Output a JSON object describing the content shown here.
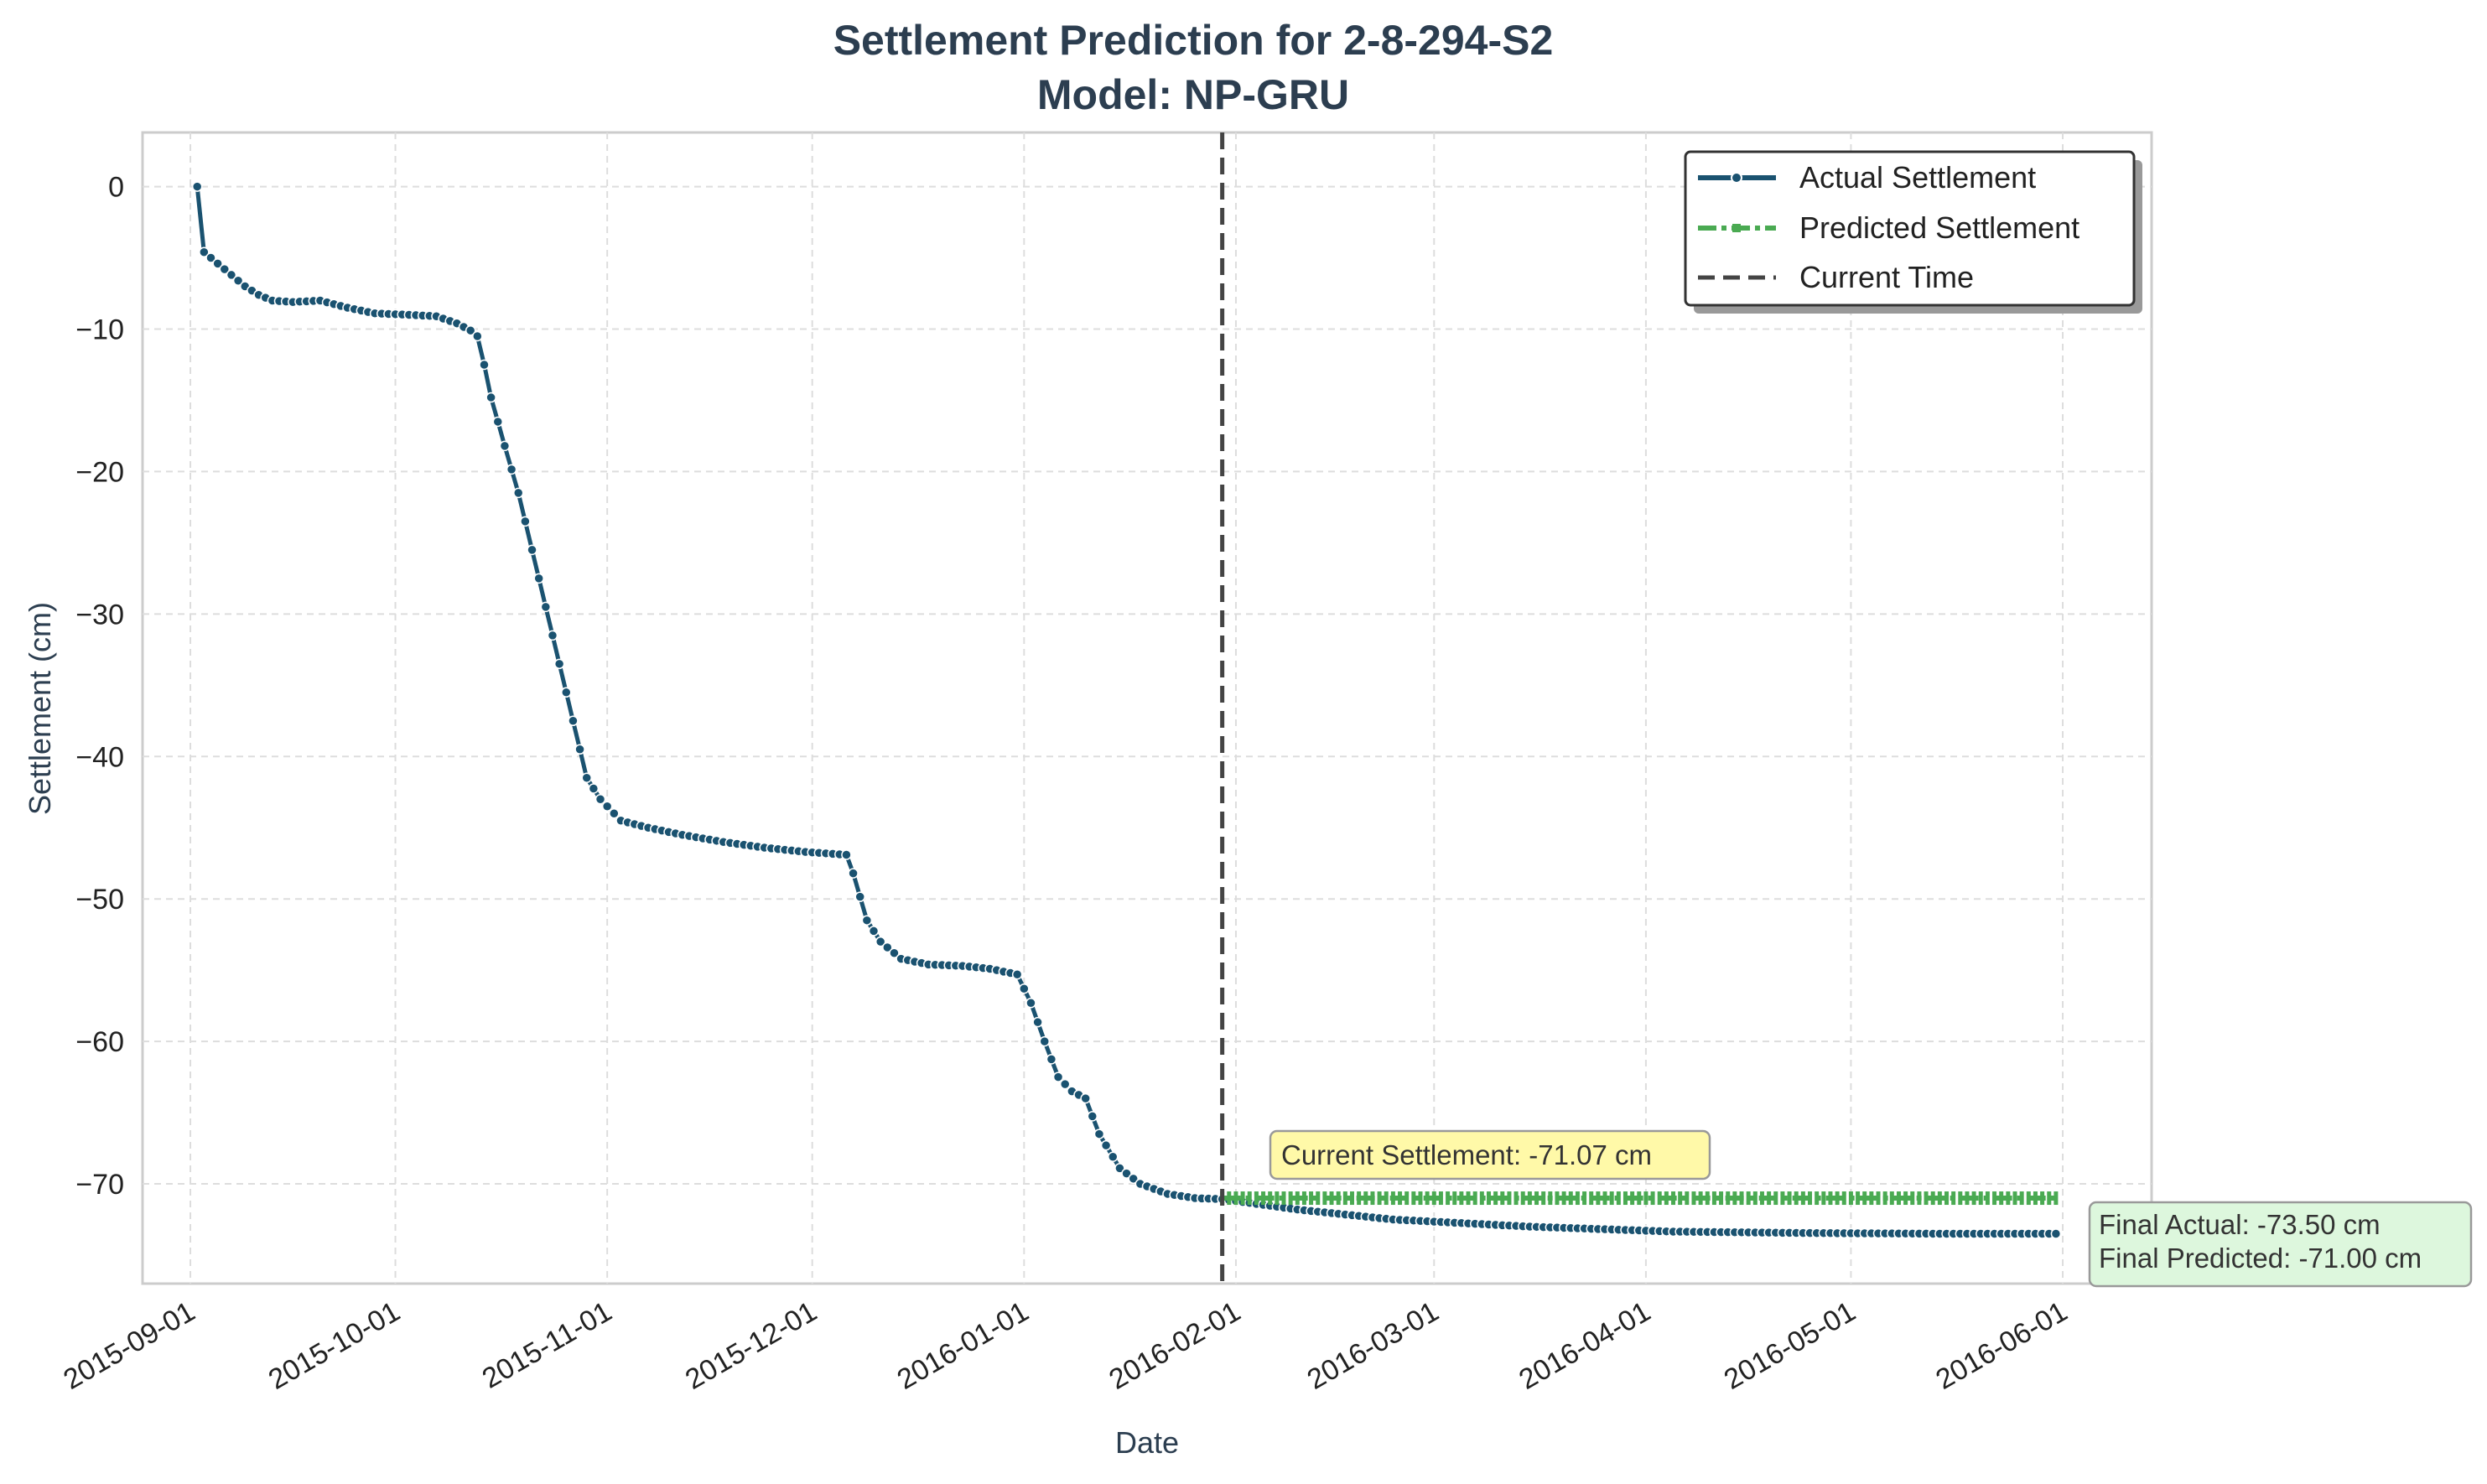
{
  "chart_data": {
    "type": "line",
    "title": "Settlement Prediction for 2-8-294-S2",
    "subtitle": "Model: NP-GRU",
    "xlabel": "Date",
    "ylabel": "Settlement (cm)",
    "x_ticks": [
      "2015-09-01",
      "2015-10-01",
      "2015-11-01",
      "2015-12-01",
      "2016-01-01",
      "2016-02-01",
      "2016-03-01",
      "2016-04-01",
      "2016-05-01",
      "2016-06-01"
    ],
    "y_ticks": [
      0,
      -10,
      -20,
      -30,
      -40,
      -50,
      -60,
      -70
    ],
    "xlim": [
      "2015-08-25",
      "2016-06-14"
    ],
    "ylim": [
      -77.0,
      3.8
    ],
    "grid": true,
    "legend_position": "top-right",
    "legend": [
      "Actual Settlement",
      "Predicted Settlement",
      "Current Time"
    ],
    "current_time": "2016-01-30",
    "series": [
      {
        "name": "Actual Settlement",
        "color": "#1a5270",
        "points": [
          [
            "2015-09-02",
            0.0
          ],
          [
            "2015-09-03",
            -4.6
          ],
          [
            "2015-09-05",
            -5.4
          ],
          [
            "2015-09-07",
            -6.2
          ],
          [
            "2015-09-09",
            -7.0
          ],
          [
            "2015-09-11",
            -7.6
          ],
          [
            "2015-09-13",
            -8.0
          ],
          [
            "2015-09-16",
            -8.1
          ],
          [
            "2015-09-20",
            -8.0
          ],
          [
            "2015-09-24",
            -8.5
          ],
          [
            "2015-09-28",
            -8.9
          ],
          [
            "2015-10-03",
            -9.0
          ],
          [
            "2015-10-07",
            -9.1
          ],
          [
            "2015-10-10",
            -9.6
          ],
          [
            "2015-10-12",
            -10.1
          ],
          [
            "2015-10-13",
            -10.5
          ],
          [
            "2015-10-14",
            -12.5
          ],
          [
            "2015-10-15",
            -14.8
          ],
          [
            "2015-10-17",
            -18.2
          ],
          [
            "2015-10-19",
            -21.5
          ],
          [
            "2015-10-21",
            -25.5
          ],
          [
            "2015-10-23",
            -29.5
          ],
          [
            "2015-10-25",
            -33.5
          ],
          [
            "2015-10-27",
            -37.5
          ],
          [
            "2015-10-29",
            -41.5
          ],
          [
            "2015-10-31",
            -43.0
          ],
          [
            "2015-11-03",
            -44.5
          ],
          [
            "2015-11-07",
            -45.0
          ],
          [
            "2015-11-12",
            -45.5
          ],
          [
            "2015-11-18",
            -46.0
          ],
          [
            "2015-11-24",
            -46.4
          ],
          [
            "2015-11-30",
            -46.7
          ],
          [
            "2015-12-06",
            -46.9
          ],
          [
            "2015-12-07",
            -48.2
          ],
          [
            "2015-12-09",
            -51.5
          ],
          [
            "2015-12-11",
            -53.0
          ],
          [
            "2015-12-14",
            -54.2
          ],
          [
            "2015-12-18",
            -54.6
          ],
          [
            "2015-12-23",
            -54.7
          ],
          [
            "2015-12-27",
            -54.9
          ],
          [
            "2015-12-31",
            -55.3
          ],
          [
            "2016-01-02",
            -57.3
          ],
          [
            "2016-01-04",
            -60.0
          ],
          [
            "2016-01-06",
            -62.5
          ],
          [
            "2016-01-08",
            -63.5
          ],
          [
            "2016-01-10",
            -64.0
          ],
          [
            "2016-01-12",
            -66.5
          ],
          [
            "2016-01-15",
            -68.9
          ],
          [
            "2016-01-18",
            -70.0
          ],
          [
            "2016-01-22",
            -70.7
          ],
          [
            "2016-01-26",
            -71.0
          ],
          [
            "2016-01-30",
            -71.07
          ],
          [
            "2016-02-10",
            -71.8
          ],
          [
            "2016-02-24",
            -72.5
          ],
          [
            "2016-03-15",
            -73.0
          ],
          [
            "2016-04-05",
            -73.35
          ],
          [
            "2016-04-25",
            -73.45
          ],
          [
            "2016-05-15",
            -73.5
          ],
          [
            "2016-05-31",
            -73.5
          ]
        ]
      },
      {
        "name": "Predicted Settlement",
        "color": "#4aaa52",
        "points": [
          [
            "2016-01-30",
            -71.0
          ],
          [
            "2016-05-31",
            -71.0
          ]
        ]
      }
    ],
    "annotations": {
      "current": "Current Settlement: -71.07 cm",
      "final_actual": "Final Actual: -73.50 cm",
      "final_predicted": "Final Predicted: -71.00 cm"
    }
  },
  "colors": {
    "actual": "#1a5270",
    "predicted": "#4aaa52",
    "current_time": "#444444",
    "title": "#2c3e50",
    "annotation_current_bg": "#fff9a8",
    "annotation_final_bg": "#ddf7dd"
  }
}
